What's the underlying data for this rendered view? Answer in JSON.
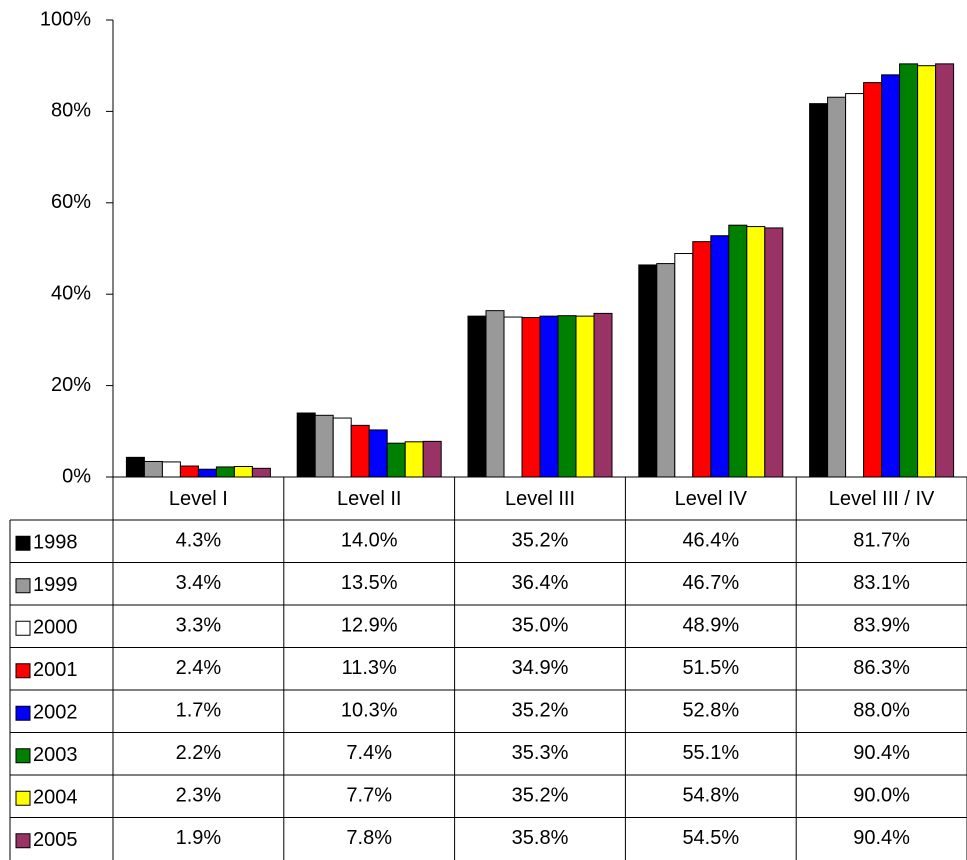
{
  "chart_data": {
    "type": "bar",
    "categories": [
      "Level I",
      "Level II",
      "Level III",
      "Level IV",
      "Level III / IV"
    ],
    "ylim": [
      0,
      100
    ],
    "yticks": [
      {
        "value": 0,
        "label": "0%"
      },
      {
        "value": 20,
        "label": "20%"
      },
      {
        "value": 40,
        "label": "40%"
      },
      {
        "value": 60,
        "label": "60%"
      },
      {
        "value": 80,
        "label": "80%"
      },
      {
        "value": 100,
        "label": "100%"
      }
    ],
    "grid": false,
    "series": [
      {
        "name": "1998",
        "color": "#000000",
        "values": [
          4.3,
          14.0,
          35.2,
          46.4,
          81.7
        ],
        "value_labels": [
          "4.3%",
          "14.0%",
          "35.2%",
          "46.4%",
          "81.7%"
        ]
      },
      {
        "name": "1999",
        "color": "#999999",
        "values": [
          3.4,
          13.5,
          36.4,
          46.7,
          83.1
        ],
        "value_labels": [
          "3.4%",
          "13.5%",
          "36.4%",
          "46.7%",
          "83.1%"
        ]
      },
      {
        "name": "2000",
        "color": "#ffffff",
        "values": [
          3.3,
          12.9,
          35.0,
          48.9,
          83.9
        ],
        "value_labels": [
          "3.3%",
          "12.9%",
          "35.0%",
          "48.9%",
          "83.9%"
        ]
      },
      {
        "name": "2001",
        "color": "#ff0000",
        "values": [
          2.4,
          11.3,
          34.9,
          51.5,
          86.3
        ],
        "value_labels": [
          "2.4%",
          "11.3%",
          "34.9%",
          "51.5%",
          "86.3%"
        ]
      },
      {
        "name": "2002",
        "color": "#0000ff",
        "values": [
          1.7,
          10.3,
          35.2,
          52.8,
          88.0
        ],
        "value_labels": [
          "1.7%",
          "10.3%",
          "35.2%",
          "52.8%",
          "88.0%"
        ]
      },
      {
        "name": "2003",
        "color": "#008000",
        "values": [
          2.2,
          7.4,
          35.3,
          55.1,
          90.4
        ],
        "value_labels": [
          "2.2%",
          "7.4%",
          "35.3%",
          "55.1%",
          "90.4%"
        ]
      },
      {
        "name": "2004",
        "color": "#ffff00",
        "values": [
          2.3,
          7.7,
          35.2,
          54.8,
          90.0
        ],
        "value_labels": [
          "2.3%",
          "7.7%",
          "35.2%",
          "54.8%",
          "90.0%"
        ]
      },
      {
        "name": "2005",
        "color": "#993366",
        "values": [
          1.9,
          7.8,
          35.8,
          54.5,
          90.4
        ],
        "value_labels": [
          "1.9%",
          "7.8%",
          "35.8%",
          "54.5%",
          "90.4%"
        ]
      }
    ]
  }
}
